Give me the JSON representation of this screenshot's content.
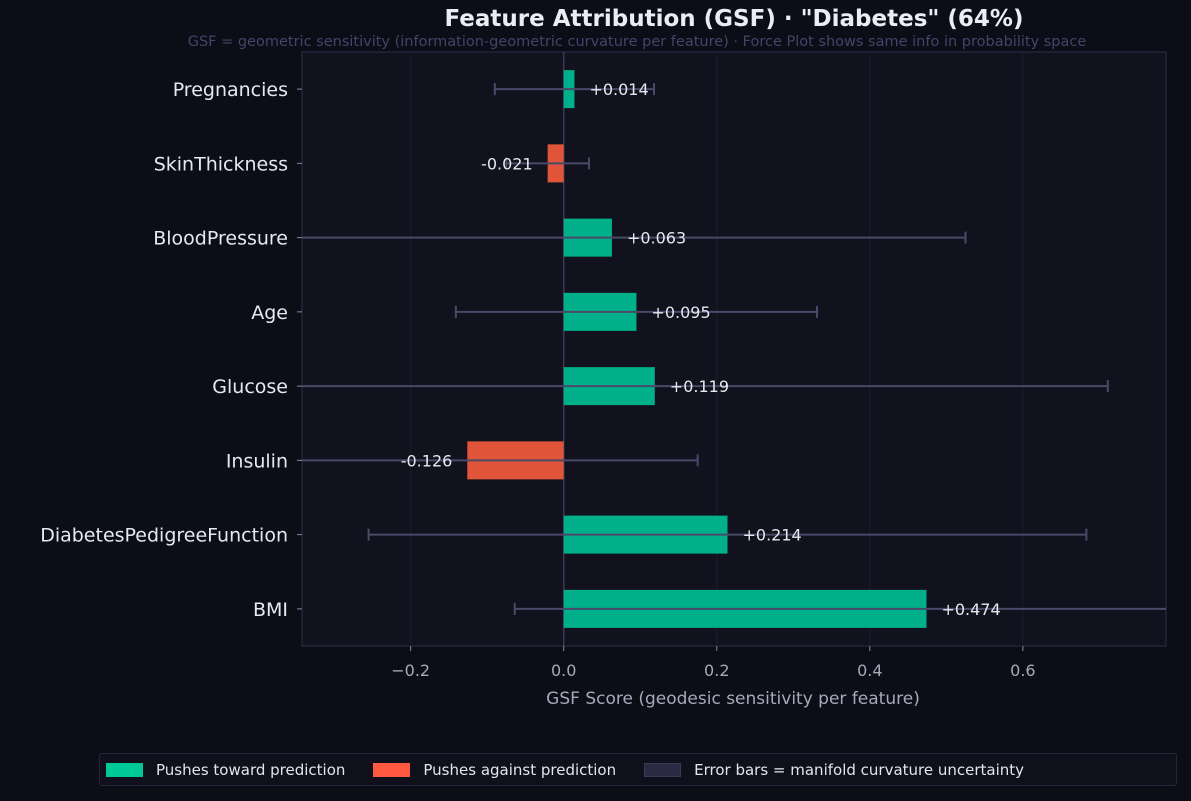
{
  "chart_data": {
    "type": "bar",
    "orientation": "horizontal",
    "title": "Feature Attribution (GSF) · \"Diabetes\" (64%)",
    "subtitle": "GSF = geometric sensitivity (information-geometric curvature per feature) · Force Plot shows same info in probability space",
    "xlabel": "GSF Score  (geodesic sensitivity per feature)",
    "ylabel": "",
    "xlim": [
      -0.342,
      0.787
    ],
    "xticks": [
      -0.2,
      0.0,
      0.2,
      0.4,
      0.6
    ],
    "xtick_labels": [
      "−0.2",
      "0.0",
      "0.2",
      "0.4",
      "0.6"
    ],
    "grid": "vertical",
    "categories": [
      "Pregnancies",
      "SkinThickness",
      "BloodPressure",
      "Age",
      "Glucose",
      "Insulin",
      "DiabetesPedigreeFunction",
      "BMI"
    ],
    "values": [
      0.014,
      -0.021,
      0.063,
      0.095,
      0.119,
      -0.126,
      0.214,
      0.474
    ],
    "value_labels": [
      "+0.014",
      "-0.021",
      "+0.063",
      "+0.095",
      "+0.119",
      "-0.126",
      "+0.214",
      "+0.474"
    ],
    "error": [
      0.104,
      0.054,
      0.462,
      0.236,
      0.592,
      0.301,
      0.469,
      0.538
    ],
    "colors": {
      "positive": "#00b08a",
      "negative": "#e0553a",
      "error_bar": "#4a4a68"
    },
    "legend": {
      "placement": "bottom",
      "items": [
        {
          "label": "Pushes toward prediction",
          "color": "#00c896"
        },
        {
          "label": "Pushes against prediction",
          "color": "#ff5a40"
        },
        {
          "label": "Error bars = manifold curvature uncertainty",
          "color": "#2a2a42"
        }
      ]
    }
  }
}
